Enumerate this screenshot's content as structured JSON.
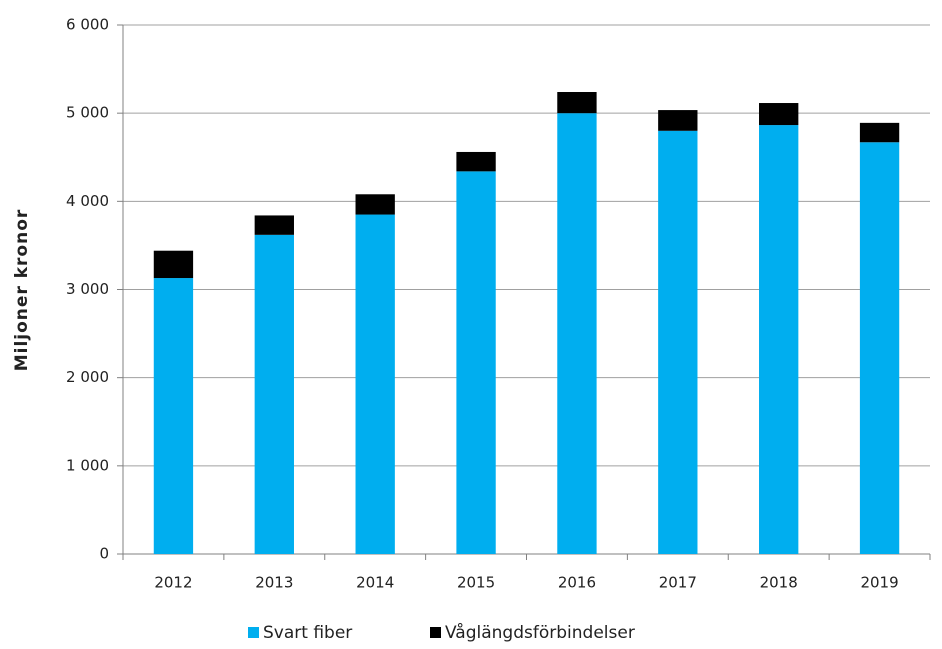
{
  "chart_data": {
    "type": "stacked_bar",
    "ylabel": "Miljoner kronor",
    "categories": [
      "2012",
      "2013",
      "2014",
      "2015",
      "2016",
      "2017",
      "2018",
      "2019"
    ],
    "series": [
      {
        "name": "Svart fiber",
        "color": "#00aeef",
        "values": [
          3130,
          3620,
          3850,
          4340,
          5000,
          4800,
          4865,
          4670
        ]
      },
      {
        "name": "Våglängdsförbindelser",
        "color": "#000000",
        "values": [
          310,
          220,
          230,
          220,
          240,
          235,
          250,
          220
        ]
      }
    ],
    "ylim": [
      0,
      6000
    ],
    "yticks": [
      0,
      {
        "value": 1000,
        "label": "1 000"
      },
      {
        "value": 2000,
        "label": "2 000"
      },
      {
        "value": 3000,
        "label": "3 000"
      },
      {
        "value": 4000,
        "label": "4 000"
      },
      {
        "value": 5000,
        "label": "5 000"
      },
      {
        "value": 6000,
        "label": "6 000"
      }
    ],
    "grid": true,
    "legend": "bottom"
  }
}
